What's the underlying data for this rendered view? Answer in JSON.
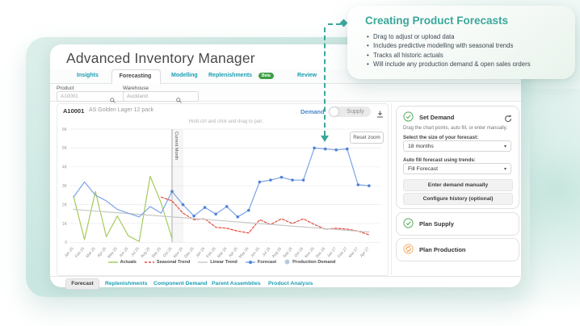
{
  "callout": {
    "title": "Creating Product Forecasts",
    "bullets": [
      "Drag to adjust or upload data",
      "Includes predictive modelling with seasonal trends",
      "Tracks all historic actuals",
      "Will include any production demand & open sales orders"
    ]
  },
  "app": {
    "title": "Advanced Inventory Manager",
    "tabs": [
      {
        "label": "Insights"
      },
      {
        "label": "Forecasting",
        "active": true
      },
      {
        "label": "Modelling"
      },
      {
        "label": "Replenishments",
        "badge": "Beta"
      },
      {
        "label": "Review"
      }
    ],
    "filters": {
      "product_label": "Product",
      "product_value": "A10001",
      "warehouse_label": "Warehouse",
      "warehouse_value": "Auckland"
    }
  },
  "chart_header": {
    "product_code": "A10001",
    "product_name": "AS Golden Lager 12 pack",
    "demand_label": "Demand",
    "supply_label": "Supply"
  },
  "chart_ui": {
    "hint": "Hold ctrl and click and drag to pan.",
    "reset_zoom": "Reset zoom",
    "current_month_label": "Current Month"
  },
  "chart_data": {
    "type": "line",
    "x": [
      "Jan 25",
      "Feb 25",
      "Mar 25",
      "Apr 25",
      "May 25",
      "Jun 25",
      "Jul 25",
      "Aug 25",
      "Sep 25",
      "Oct 25",
      "Nov 25",
      "Dec 25",
      "Jan 26",
      "Feb 26",
      "Mar 26",
      "Apr 26",
      "May 26",
      "Jun 26",
      "Jul 26",
      "Aug 26",
      "Sep 26",
      "Oct 26",
      "Nov 26",
      "Dec 26",
      "Jan 27",
      "Feb 27",
      "Mar 27",
      "Apr 27"
    ],
    "ylim": [
      0,
      6000
    ],
    "yticks": [
      "0",
      "1K",
      "2K",
      "3K",
      "4K",
      "5K",
      "6K"
    ],
    "grid": "horizontal",
    "legend_position": "bottom",
    "current_month_index": 9,
    "series": [
      {
        "name": "Actuals",
        "color": "#a3cb5c",
        "style": "solid",
        "start_index": 0,
        "values": [
          2450,
          150,
          2700,
          300,
          1400,
          350,
          50,
          3500,
          2100,
          200
        ]
      },
      {
        "name": "Seasonal Trend",
        "color": "#e2493c",
        "style": "dashed",
        "start_index": 8,
        "values": [
          2400,
          2200,
          1550,
          1200,
          1250,
          800,
          750,
          600,
          500,
          1200,
          950,
          1250,
          1000,
          1250,
          950,
          700,
          750,
          700,
          600,
          400
        ]
      },
      {
        "name": "Linear Trend",
        "color": "#c7c7c7",
        "style": "solid",
        "start_index": 0,
        "x_indices": [
          0,
          27
        ],
        "values": [
          1750,
          550
        ]
      },
      {
        "name": "Forecast",
        "color": "#7da3e6",
        "marker_color": "#4f82d8",
        "style": "solid",
        "markers_from": 9,
        "start_index": 0,
        "values": [
          2400,
          3200,
          2500,
          2200,
          1750,
          1550,
          1350,
          1900,
          1550,
          2700,
          2000,
          1400,
          1850,
          1500,
          1900,
          1350,
          1700,
          3200,
          3300,
          3450,
          3300,
          3300,
          5000,
          4950,
          4900,
          4950,
          3050,
          3000
        ]
      },
      {
        "name": "Production Demand",
        "color": "#b9c8dd",
        "style": "dots",
        "start_index": 0,
        "values": []
      }
    ]
  },
  "panel": {
    "set_demand": {
      "title": "Set Demand",
      "description": "Drag the chart points, auto fill, or enter manually.",
      "size_label": "Select the size of your forecast:",
      "size_value": "18 months",
      "autofill_label": "Auto fill forecast using trends:",
      "autofill_value": "Fill Forecast",
      "button_enter": "Enter demand manually",
      "button_configure": "Configure history (optional)"
    },
    "plan_supply": {
      "title": "Plan Supply"
    },
    "plan_production": {
      "title": "Plan Production"
    }
  },
  "footer_tabs": [
    {
      "label": "Forecast",
      "active": true
    },
    {
      "label": "Replenishments"
    },
    {
      "label": "Component Demand"
    },
    {
      "label": "Parent Assemblies"
    },
    {
      "label": "Product Analysis"
    }
  ],
  "colors": {
    "accent_teal": "#3aa79b",
    "tab_teal": "#1a9eb3",
    "demand_blue": "#4a86cf",
    "beta_green": "#3da045",
    "check_green": "#66b56a",
    "production_orange": "#f09a4a"
  }
}
